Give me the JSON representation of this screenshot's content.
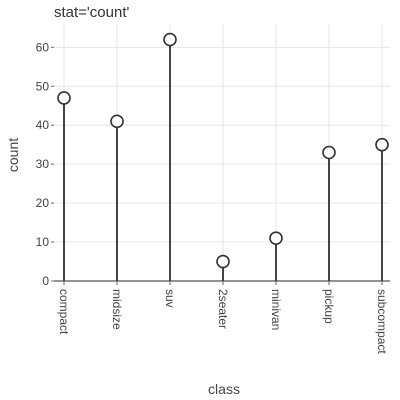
{
  "chart_data": {
    "type": "lollipop",
    "title": "stat='count'",
    "xlabel": "class",
    "ylabel": "count",
    "categories": [
      "compact",
      "midsize",
      "suv",
      "2seater",
      "minivan",
      "pickup",
      "subcompact"
    ],
    "values": [
      47,
      41,
      62,
      5,
      11,
      33,
      35
    ],
    "ylim": [
      0,
      66
    ],
    "yticks": [
      0,
      10,
      20,
      30,
      40,
      50,
      60
    ],
    "grid": true,
    "colors": {
      "stem": "#444444",
      "marker_fill": "#ffffff",
      "marker_stroke": "#333333",
      "grid": "#e6e6e6"
    }
  }
}
